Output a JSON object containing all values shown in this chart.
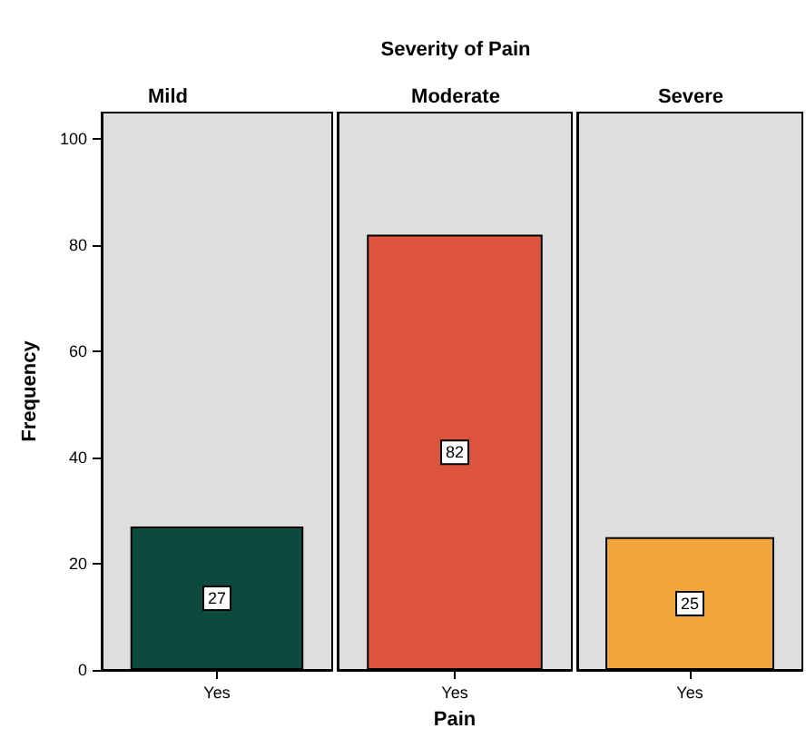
{
  "chart_data": [
    {
      "type": "bar",
      "title": "Mild",
      "ylabel": "Frequency",
      "categories": [
        "Yes"
      ],
      "values": [
        27
      ],
      "color": "#0b4a3c",
      "ylim": [
        0,
        105
      ],
      "yticks": [
        0,
        20,
        40,
        60,
        80,
        100
      ],
      "data_labels": true
    },
    {
      "type": "bar",
      "title": "Moderate",
      "annotations": [
        "Severity of Pain"
      ],
      "xlabel": "Pain",
      "categories": [
        "Yes"
      ],
      "values": [
        82
      ],
      "color": "#dd553f",
      "ylim": [
        0,
        105
      ],
      "yticks": [
        0,
        20,
        40,
        60,
        80,
        100
      ],
      "data_labels": true,
      "tick_labels": "x"
    },
    {
      "type": "bar",
      "title": "Severe",
      "categories": [
        "Yes"
      ],
      "values": [
        25
      ],
      "color": "#f0a43a",
      "ylim": [
        0,
        105
      ],
      "yticks": [
        0,
        20,
        40,
        60,
        80,
        100
      ],
      "data_labels": true,
      "tick_labels": "x"
    }
  ]
}
